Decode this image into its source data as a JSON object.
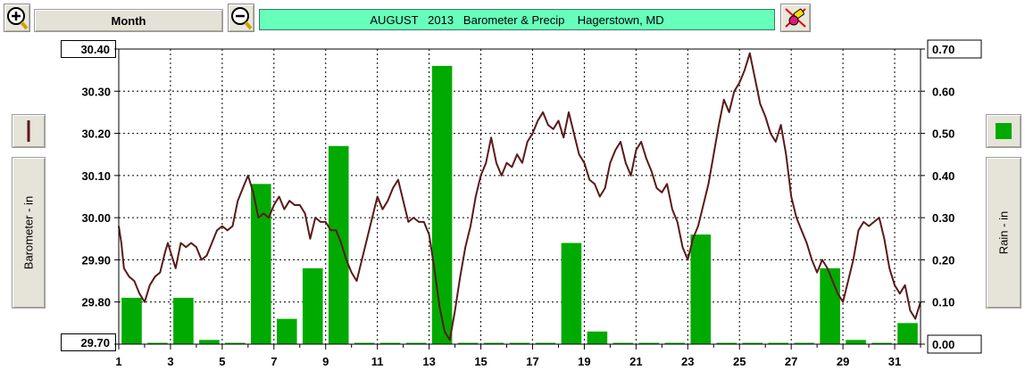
{
  "toolbar": {
    "zoom_in_icon": "magnifier-plus-icon",
    "zoom_out_icon": "magnifier-minus-icon",
    "period_label": "Month",
    "title": "AUGUST   2013   Barometer & Precip    Hagerstown, MD",
    "tool_icon": "paint-eraser-icon"
  },
  "left_panel": {
    "legend_icon": "barometer-line-icon",
    "axis_button_label": "Barometer - in",
    "color": "#5a1a1a"
  },
  "right_panel": {
    "legend_icon": "rain-bar-icon",
    "axis_button_label": "Rain - in",
    "color": "#00aa00"
  },
  "chart_data": {
    "type": "bar+line",
    "title": "AUGUST   2013   Barometer & Precip    Hagerstown, MD",
    "x": {
      "range": [
        1,
        32
      ],
      "tick_labels": [
        "1",
        "3",
        "5",
        "7",
        "9",
        "11",
        "13",
        "15",
        "17",
        "19",
        "21",
        "23",
        "25",
        "27",
        "29",
        "31"
      ],
      "grid": true
    },
    "y_left": {
      "label": "Barometer - in",
      "range": [
        29.7,
        30.4
      ],
      "tick_labels": [
        "30.40",
        "30.30",
        "30.20",
        "30.10",
        "30.00",
        "29.90",
        "29.80",
        "29.70"
      ],
      "boxed_labels": [
        "30.40",
        "29.70"
      ]
    },
    "y_right": {
      "label": "Rain - in",
      "range": [
        0,
        0.7
      ],
      "tick_labels": [
        "0.70",
        "0.60",
        "0.50",
        "0.40",
        "0.30",
        "0.20",
        "0.10",
        "0.00"
      ]
    },
    "grid": "dotted",
    "series": [
      {
        "name": "Rain - in",
        "type": "bar",
        "axis": "right",
        "color": "#00aa00",
        "x": [
          1,
          2,
          3,
          4,
          5,
          6,
          7,
          8,
          9,
          10,
          11,
          12,
          13,
          14,
          15,
          16,
          17,
          18,
          19,
          20,
          21,
          22,
          23,
          24,
          25,
          26,
          27,
          28,
          29,
          30,
          31
        ],
        "values": [
          0.11,
          0,
          0.11,
          0.01,
          0,
          0.38,
          0.06,
          0.18,
          0.47,
          0,
          0,
          0,
          0.66,
          0,
          0,
          0,
          0,
          0.24,
          0.03,
          0,
          0,
          0,
          0.26,
          0,
          0,
          0,
          0,
          0.18,
          0.01,
          0,
          0.05
        ]
      },
      {
        "name": "Barometer - in",
        "type": "line",
        "axis": "left",
        "color": "#5a1a1a",
        "points": [
          [
            1.0,
            29.98
          ],
          [
            1.1,
            29.94
          ],
          [
            1.2,
            29.88
          ],
          [
            1.4,
            29.86
          ],
          [
            1.6,
            29.85
          ],
          [
            1.8,
            29.82
          ],
          [
            2.0,
            29.8
          ],
          [
            2.2,
            29.84
          ],
          [
            2.4,
            29.86
          ],
          [
            2.6,
            29.87
          ],
          [
            2.8,
            29.92
          ],
          [
            2.9,
            29.94
          ],
          [
            3.0,
            29.92
          ],
          [
            3.2,
            29.88
          ],
          [
            3.4,
            29.94
          ],
          [
            3.6,
            29.93
          ],
          [
            3.8,
            29.94
          ],
          [
            4.0,
            29.93
          ],
          [
            4.2,
            29.9
          ],
          [
            4.4,
            29.91
          ],
          [
            4.6,
            29.94
          ],
          [
            4.8,
            29.97
          ],
          [
            5.0,
            29.98
          ],
          [
            5.2,
            29.97
          ],
          [
            5.4,
            29.98
          ],
          [
            5.6,
            30.04
          ],
          [
            5.8,
            30.07
          ],
          [
            6.0,
            30.1
          ],
          [
            6.2,
            30.06
          ],
          [
            6.4,
            30.0
          ],
          [
            6.6,
            30.01
          ],
          [
            6.8,
            30.0
          ],
          [
            7.0,
            30.03
          ],
          [
            7.2,
            30.05
          ],
          [
            7.4,
            30.02
          ],
          [
            7.6,
            30.04
          ],
          [
            7.8,
            30.03
          ],
          [
            8.0,
            30.03
          ],
          [
            8.2,
            30.01
          ],
          [
            8.4,
            29.95
          ],
          [
            8.6,
            30.0
          ],
          [
            8.8,
            29.99
          ],
          [
            9.0,
            29.99
          ],
          [
            9.2,
            29.97
          ],
          [
            9.4,
            29.97
          ],
          [
            9.6,
            29.94
          ],
          [
            9.8,
            29.9
          ],
          [
            10.0,
            29.87
          ],
          [
            10.2,
            29.85
          ],
          [
            10.4,
            29.9
          ],
          [
            10.6,
            29.95
          ],
          [
            10.8,
            30.0
          ],
          [
            11.0,
            30.05
          ],
          [
            11.2,
            30.02
          ],
          [
            11.4,
            30.04
          ],
          [
            11.6,
            30.07
          ],
          [
            11.8,
            30.09
          ],
          [
            12.0,
            30.04
          ],
          [
            12.2,
            29.99
          ],
          [
            12.4,
            30.0
          ],
          [
            12.6,
            29.99
          ],
          [
            12.8,
            29.99
          ],
          [
            13.0,
            29.96
          ],
          [
            13.2,
            29.88
          ],
          [
            13.4,
            29.79
          ],
          [
            13.6,
            29.73
          ],
          [
            13.8,
            29.71
          ],
          [
            14.0,
            29.78
          ],
          [
            14.2,
            29.86
          ],
          [
            14.4,
            29.93
          ],
          [
            14.6,
            29.98
          ],
          [
            14.8,
            30.05
          ],
          [
            15.0,
            30.1
          ],
          [
            15.2,
            30.13
          ],
          [
            15.4,
            30.19
          ],
          [
            15.6,
            30.13
          ],
          [
            15.8,
            30.1
          ],
          [
            16.0,
            30.13
          ],
          [
            16.2,
            30.12
          ],
          [
            16.4,
            30.15
          ],
          [
            16.6,
            30.13
          ],
          [
            16.8,
            30.18
          ],
          [
            17.0,
            30.2
          ],
          [
            17.2,
            30.23
          ],
          [
            17.4,
            30.25
          ],
          [
            17.6,
            30.22
          ],
          [
            17.8,
            30.21
          ],
          [
            18.0,
            30.23
          ],
          [
            18.2,
            30.19
          ],
          [
            18.4,
            30.25
          ],
          [
            18.6,
            30.2
          ],
          [
            18.8,
            30.15
          ],
          [
            19.0,
            30.13
          ],
          [
            19.2,
            30.09
          ],
          [
            19.4,
            30.08
          ],
          [
            19.6,
            30.05
          ],
          [
            19.8,
            30.07
          ],
          [
            20.0,
            30.13
          ],
          [
            20.2,
            30.16
          ],
          [
            20.4,
            30.18
          ],
          [
            20.6,
            30.13
          ],
          [
            20.8,
            30.1
          ],
          [
            21.0,
            30.16
          ],
          [
            21.2,
            30.18
          ],
          [
            21.4,
            30.14
          ],
          [
            21.6,
            30.11
          ],
          [
            21.8,
            30.07
          ],
          [
            22.0,
            30.06
          ],
          [
            22.2,
            30.08
          ],
          [
            22.4,
            30.02
          ],
          [
            22.6,
            29.99
          ],
          [
            22.8,
            29.93
          ],
          [
            23.0,
            29.9
          ],
          [
            23.2,
            29.95
          ],
          [
            23.4,
            29.98
          ],
          [
            23.6,
            30.03
          ],
          [
            23.8,
            30.08
          ],
          [
            24.0,
            30.15
          ],
          [
            24.2,
            30.22
          ],
          [
            24.4,
            30.28
          ],
          [
            24.6,
            30.25
          ],
          [
            24.8,
            30.3
          ],
          [
            25.0,
            30.32
          ],
          [
            25.2,
            30.35
          ],
          [
            25.4,
            30.39
          ],
          [
            25.6,
            30.33
          ],
          [
            25.8,
            30.27
          ],
          [
            26.0,
            30.24
          ],
          [
            26.2,
            30.2
          ],
          [
            26.4,
            30.18
          ],
          [
            26.6,
            30.22
          ],
          [
            26.8,
            30.15
          ],
          [
            27.0,
            30.05
          ],
          [
            27.2,
            30.0
          ],
          [
            27.4,
            29.97
          ],
          [
            27.6,
            29.94
          ],
          [
            27.8,
            29.9
          ],
          [
            28.0,
            29.87
          ],
          [
            28.2,
            29.9
          ],
          [
            28.4,
            29.88
          ],
          [
            28.6,
            29.85
          ],
          [
            28.8,
            29.82
          ],
          [
            29.0,
            29.8
          ],
          [
            29.2,
            29.85
          ],
          [
            29.4,
            29.9
          ],
          [
            29.6,
            29.97
          ],
          [
            29.8,
            29.99
          ],
          [
            30.0,
            29.98
          ],
          [
            30.2,
            29.99
          ],
          [
            30.4,
            30.0
          ],
          [
            30.6,
            29.95
          ],
          [
            30.8,
            29.88
          ],
          [
            31.0,
            29.84
          ],
          [
            31.2,
            29.82
          ],
          [
            31.4,
            29.84
          ],
          [
            31.6,
            29.78
          ],
          [
            31.8,
            29.76
          ],
          [
            32.0,
            29.8
          ]
        ]
      }
    ]
  }
}
